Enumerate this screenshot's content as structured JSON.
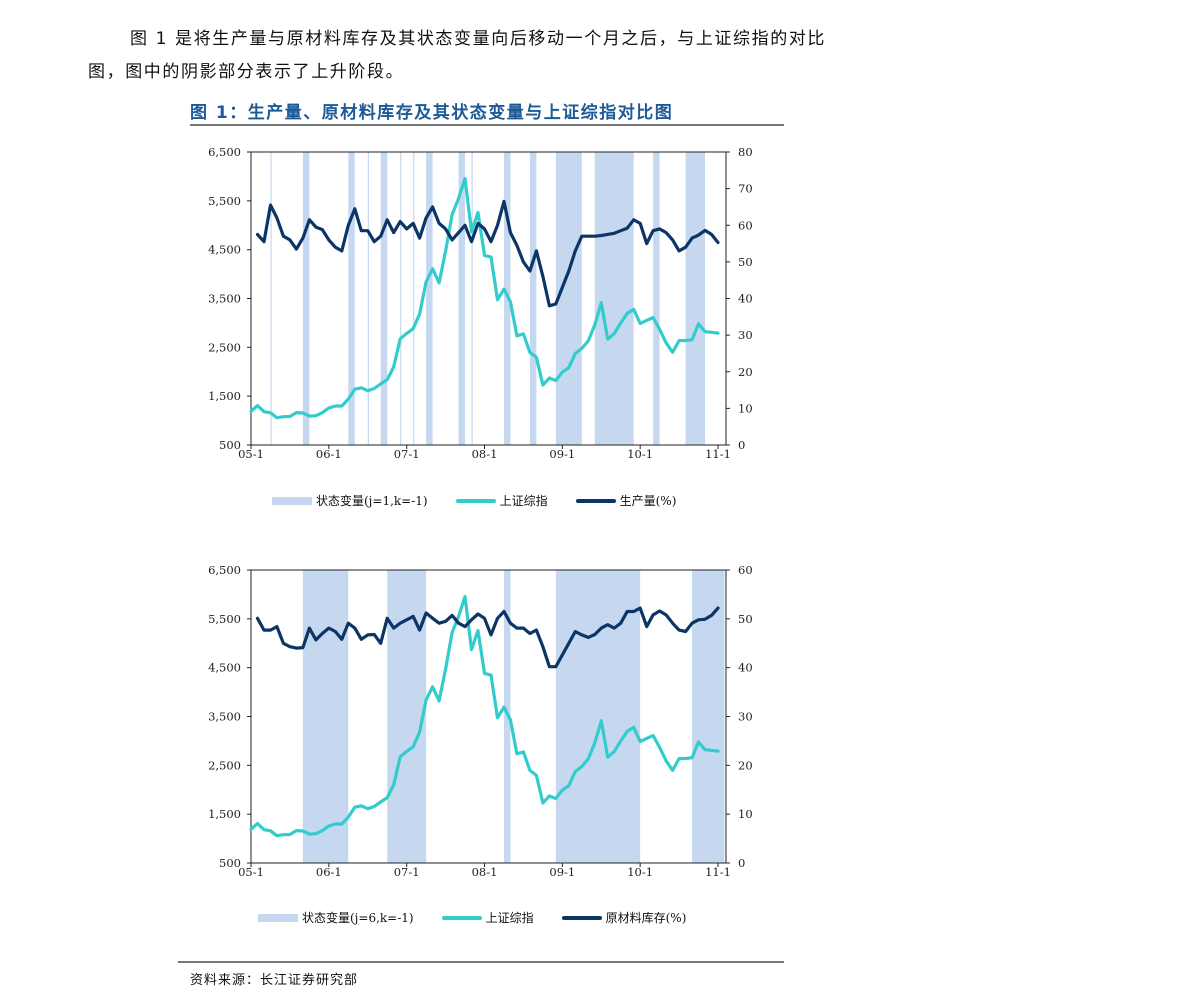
{
  "intro": {
    "line1": "图 1 是将生产量与原材料库存及其状态变量向后移动一个月之后，与上证综指的对比",
    "line2": "图，图中的阴影部分表示了上升阶段。"
  },
  "figure_title": "图 1：生产量、原材料库存及其状态变量与上证综指对比图",
  "source": "资料来源：长江证券研究部",
  "colors": {
    "band": "#c5d8f0",
    "sse": "#33cccc",
    "dark": "#0b3566"
  },
  "chart_data": [
    {
      "type": "line",
      "x_tick_labels": [
        "05-1",
        "06-1",
        "07-1",
        "08-1",
        "09-1",
        "10-1",
        "11-1"
      ],
      "x_ticks": [
        "2005-01",
        "2006-01",
        "2007-01",
        "2008-01",
        "2009-01",
        "2010-01",
        "2011-01"
      ],
      "left_axis": {
        "ylim": [
          500,
          6500
        ],
        "tick_labels": [
          "500",
          "1,500",
          "2,500",
          "3,500",
          "4,500",
          "5,500",
          "6,500"
        ]
      },
      "right_axis": {
        "ylim": [
          0,
          80
        ],
        "tick_labels": [
          "0",
          "10",
          "20",
          "30",
          "40",
          "50",
          "60",
          "70",
          "80"
        ]
      },
      "grid": false,
      "legend_position": "bottom",
      "bands": {
        "name": "状态变量(j=1,k=-1)",
        "ranges": [
          [
            "2005-04",
            "2005-04"
          ],
          [
            "2005-09",
            "2005-10"
          ],
          [
            "2006-04",
            "2006-05"
          ],
          [
            "2006-07",
            "2006-07"
          ],
          [
            "2006-09",
            "2006-10"
          ],
          [
            "2006-12",
            "2006-12"
          ],
          [
            "2007-02",
            "2007-02"
          ],
          [
            "2007-04",
            "2007-05"
          ],
          [
            "2007-09",
            "2007-10"
          ],
          [
            "2007-11",
            "2007-11"
          ],
          [
            "2008-04",
            "2008-05"
          ],
          [
            "2008-08",
            "2008-09"
          ],
          [
            "2008-12",
            "2009-04"
          ],
          [
            "2009-06",
            "2009-12"
          ],
          [
            "2010-03",
            "2010-04"
          ],
          [
            "2010-08",
            "2010-11"
          ]
        ]
      },
      "series": [
        {
          "name": "上证综指",
          "axis": "left",
          "start": "2005-01",
          "values": [
            1191,
            1306,
            1181,
            1159,
            1060,
            1080,
            1083,
            1163,
            1155,
            1092,
            1099,
            1161,
            1258,
            1299,
            1299,
            1440,
            1642,
            1672,
            1612,
            1658,
            1752,
            1838,
            2099,
            2675,
            2786,
            2881,
            3183,
            3841,
            4109,
            3820,
            4471,
            5218,
            5552,
            5955,
            4871,
            5262,
            4383,
            4348,
            3473,
            3693,
            3433,
            2736,
            2775,
            2397,
            2293,
            1729,
            1871,
            1821,
            1991,
            2082,
            2373,
            2477,
            2633,
            2959,
            3412,
            2668,
            2779,
            2996,
            3195,
            3277,
            2989,
            3051,
            3110,
            2870,
            2592,
            2398,
            2638,
            2639,
            2656,
            2979,
            2820,
            2808,
            2791
          ]
        },
        {
          "name": "生产量(%)",
          "axis": "right",
          "start": "2005-02",
          "values": [
            57.5,
            55.5,
            65.5,
            62,
            57,
            56,
            53.5,
            56.5,
            61.5,
            59.5,
            58.8,
            56,
            54,
            53,
            60,
            64.5,
            58.5,
            58.5,
            55.5,
            57,
            61.5,
            58,
            61,
            59,
            60.5,
            56.5,
            62,
            65,
            60.5,
            59,
            56,
            58,
            60,
            55.5,
            60.5,
            59,
            55.5,
            60,
            66.5,
            58,
            54.5,
            50,
            47.5,
            53,
            46,
            38,
            38.5,
            43,
            47.5,
            53,
            57,
            57,
            57,
            57.2,
            57.5,
            57.8,
            58.5,
            59.2,
            61.5,
            60.5,
            55,
            58.5,
            59,
            58,
            56,
            53,
            54,
            56.5,
            57.3,
            58.6,
            57.5,
            55.3
          ]
        }
      ]
    },
    {
      "type": "line",
      "x_tick_labels": [
        "05-1",
        "06-1",
        "07-1",
        "08-1",
        "09-1",
        "10-1",
        "11-1"
      ],
      "x_ticks": [
        "2005-01",
        "2006-01",
        "2007-01",
        "2008-01",
        "2009-01",
        "2010-01",
        "2011-01"
      ],
      "left_axis": {
        "ylim": [
          500,
          6500
        ],
        "tick_labels": [
          "500",
          "1,500",
          "2,500",
          "3,500",
          "4,500",
          "5,500",
          "6,500"
        ]
      },
      "right_axis": {
        "ylim": [
          0,
          60
        ],
        "tick_labels": [
          "0",
          "10",
          "20",
          "30",
          "40",
          "50",
          "60"
        ]
      },
      "grid": false,
      "legend_position": "bottom",
      "bands": {
        "name": "状态变量(j=6,k=-1)",
        "ranges": [
          [
            "2005-09",
            "2006-04"
          ],
          [
            "2006-10",
            "2007-04"
          ],
          [
            "2008-04",
            "2008-05"
          ],
          [
            "2008-12",
            "2010-01"
          ],
          [
            "2010-09",
            "2011-02"
          ]
        ]
      },
      "series": [
        {
          "name": "上证综指",
          "axis": "left",
          "start": "2005-01",
          "values": [
            1191,
            1306,
            1181,
            1159,
            1060,
            1080,
            1083,
            1163,
            1155,
            1092,
            1099,
            1161,
            1258,
            1299,
            1299,
            1440,
            1642,
            1672,
            1612,
            1658,
            1752,
            1838,
            2099,
            2675,
            2786,
            2881,
            3183,
            3841,
            4109,
            3820,
            4471,
            5218,
            5552,
            5955,
            4871,
            5262,
            4383,
            4348,
            3473,
            3693,
            3433,
            2736,
            2775,
            2397,
            2293,
            1729,
            1871,
            1821,
            1991,
            2082,
            2373,
            2477,
            2633,
            2959,
            3412,
            2668,
            2779,
            2996,
            3195,
            3277,
            2989,
            3051,
            3110,
            2870,
            2592,
            2398,
            2638,
            2639,
            2656,
            2979,
            2820,
            2808,
            2791
          ]
        },
        {
          "name": "原材料库存(%)",
          "axis": "right",
          "start": "2005-02",
          "values": [
            50.1,
            47.7,
            47.7,
            48.4,
            45,
            44.3,
            44,
            44.1,
            48.1,
            45.7,
            47,
            48.1,
            47.4,
            45.8,
            49.1,
            48.1,
            45.8,
            46.7,
            46.8,
            45,
            50.1,
            48.1,
            49.1,
            49.8,
            50.5,
            47.7,
            51.2,
            50.1,
            49.1,
            49.5,
            50.7,
            49.1,
            48.4,
            49.8,
            51,
            50.1,
            46.7,
            50.1,
            51.5,
            49.1,
            48.1,
            48.1,
            47,
            47.7,
            44.3,
            40.2,
            40.2,
            42.6,
            45,
            47.4,
            46.7,
            46.2,
            46.8,
            48.1,
            48.8,
            48.1,
            49.1,
            51.5,
            51.5,
            52.2,
            48.4,
            50.8,
            51.6,
            50.8,
            49.1,
            47.7,
            47.4,
            49.1,
            49.8,
            49.9,
            50.7,
            52.2
          ]
        }
      ]
    }
  ]
}
